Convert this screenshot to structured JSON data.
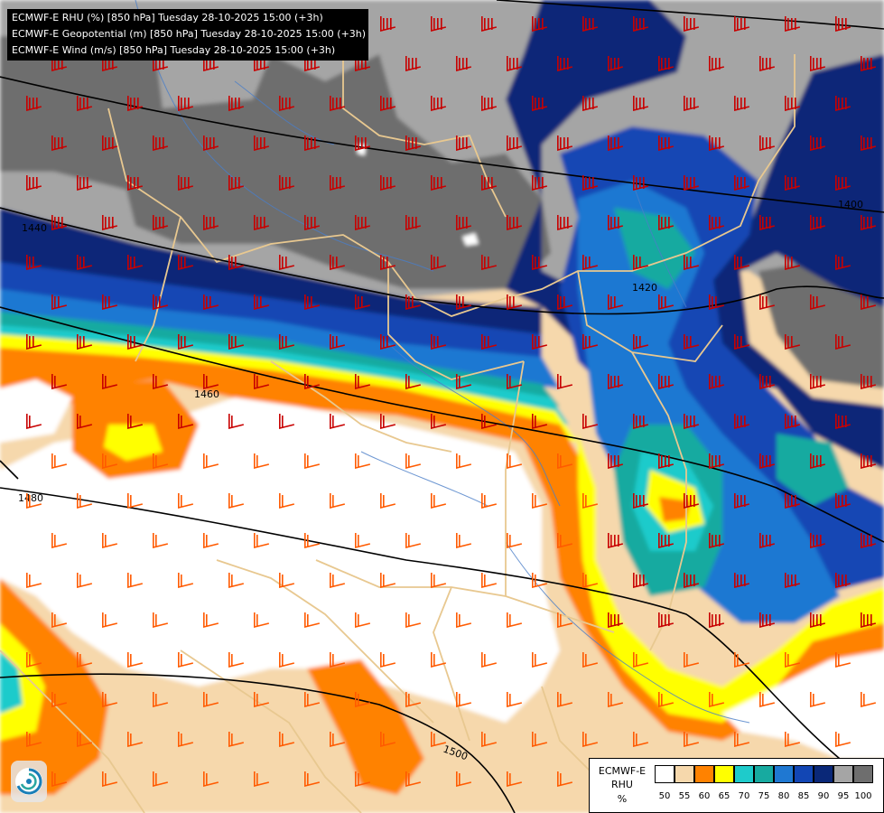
{
  "header": {
    "line1": "ECMWF-E RHU (%) [850 hPa] Tuesday 28-10-2025 15:00 (+3h)",
    "line2": "ECMWF-E Geopotential (m) [850 hPa] Tuesday 28-10-2025 15:00 (+3h)",
    "line3": "ECMWF-E Wind (m/s) [850 hPa] Tuesday 28-10-2025 15:00 (+3h)"
  },
  "contour_labels": {
    "c1400": "1400",
    "c1420": "1420",
    "c1440": "1440",
    "c1460": "1460",
    "c1480": "1480",
    "c1500": "1500"
  },
  "legend": {
    "model": "ECMWF-E",
    "variable": "RHU",
    "unit": "%",
    "ticks": [
      "50",
      "55",
      "60",
      "65",
      "70",
      "75",
      "80",
      "85",
      "90",
      "95",
      "100"
    ],
    "colors": [
      "#ffffff",
      "#f6d8ac",
      "#ff8200",
      "#ffff00",
      "#1ecbcb",
      "#17aaa0",
      "#1f78d2",
      "#1246b4",
      "#0a2878",
      "#a5a5a5",
      "#6e6e6e"
    ]
  },
  "palette": {
    "wind_barb_strong": "#c80000",
    "wind_barb_moderate": "#ff5a00",
    "wind_barb_weak": "#ff9bc0",
    "geopotential_contour": "#000000",
    "borders": "#e8c890",
    "rivers": "#4a7ec8"
  },
  "logo_icon": "ecmwf-swirl-icon"
}
